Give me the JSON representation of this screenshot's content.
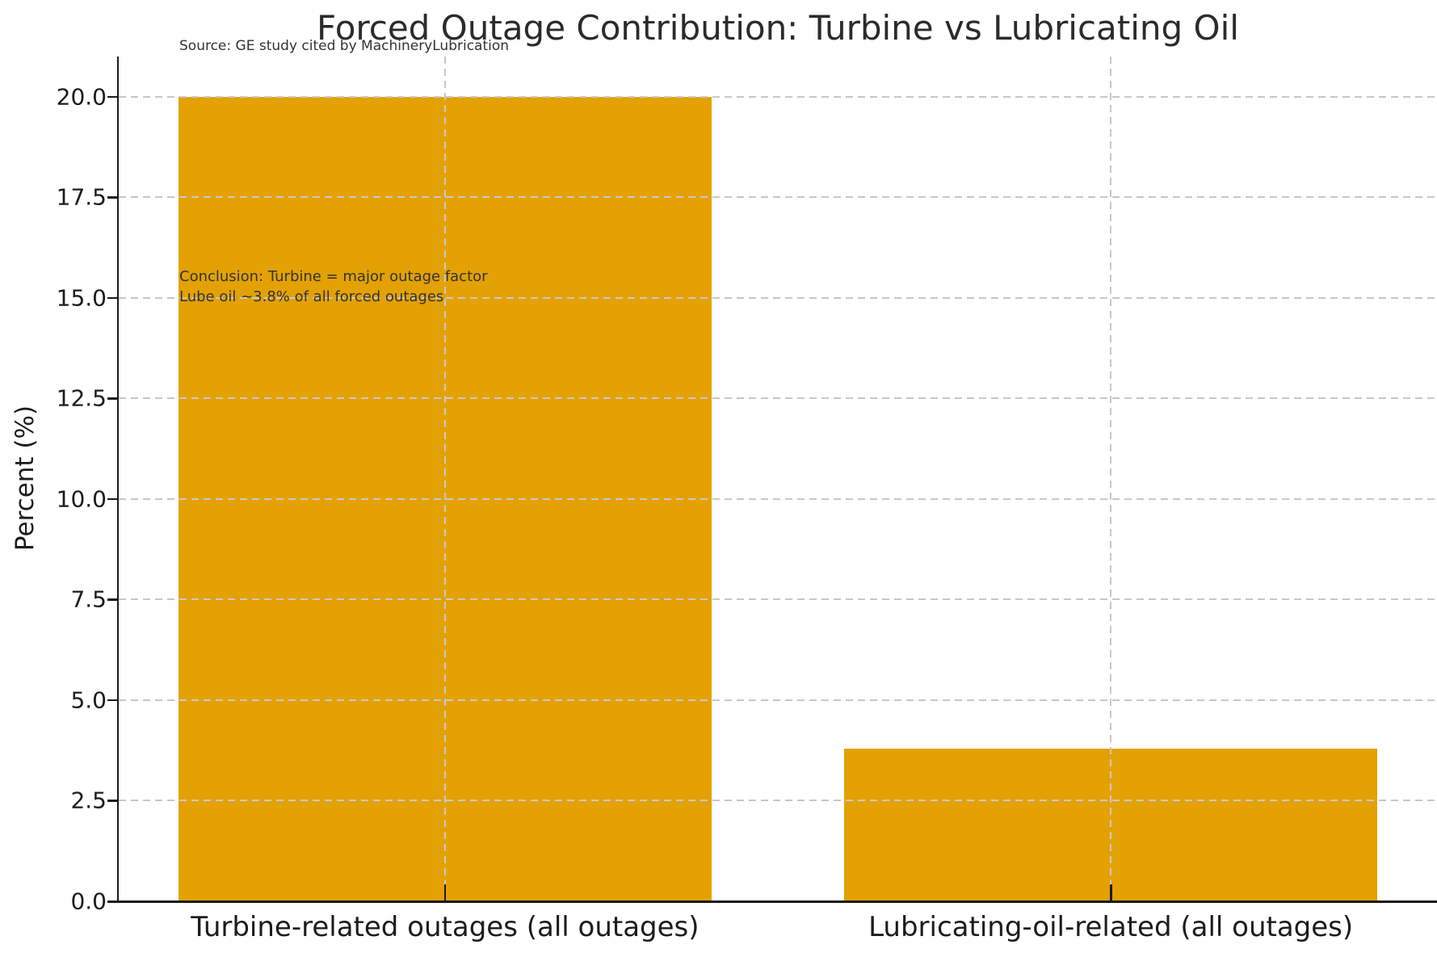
{
  "chart_data": {
    "type": "bar",
    "title": "Forced Outage Contribution: Turbine vs Lubricating Oil",
    "source_note": "Source: GE study cited by MachineryLubrication",
    "categories": [
      "Turbine-related outages (all outages)",
      "Lubricating-oil-related (all outages)"
    ],
    "values": [
      20.0,
      3.8
    ],
    "xlabel": "",
    "ylabel": "Percent (%)",
    "ylim": [
      0,
      21
    ],
    "yticks": [
      0.0,
      2.5,
      5.0,
      7.5,
      10.0,
      12.5,
      15.0,
      17.5,
      20.0
    ],
    "ytick_labels": [
      "0.0",
      "2.5",
      "5.0",
      "7.5",
      "10.0",
      "12.5",
      "15.0",
      "17.5",
      "20.0"
    ],
    "grid": true,
    "legend": "none",
    "annotation_lines": [
      "Conclusion: Turbine = major outage factor",
      "Lube oil ~3.8% of all forced outages"
    ],
    "colors": {
      "bar": "#E3A103",
      "grid": "#c8c8c8",
      "axis": "#1a1a1a",
      "text": "#2b2b2b"
    }
  }
}
